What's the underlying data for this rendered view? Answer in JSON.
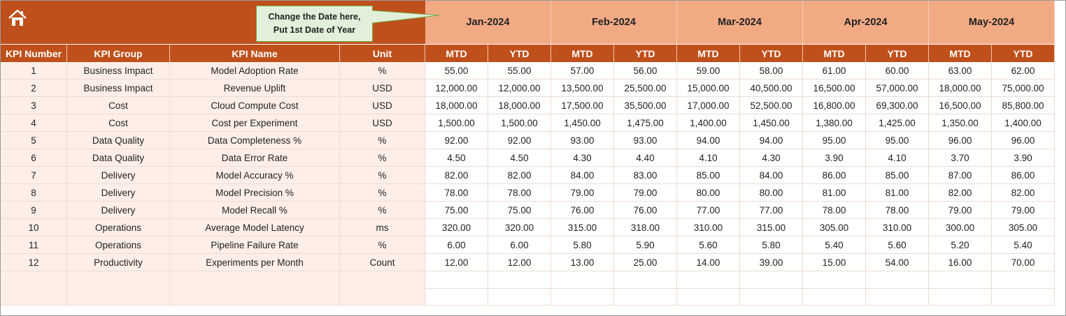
{
  "header": {
    "note": [
      "Change the Date here,",
      "Put 1st Date of Year"
    ],
    "months": [
      "Jan-2024",
      "Feb-2024",
      "Mar-2024",
      "Apr-2024",
      "May-2024"
    ]
  },
  "table": {
    "columns": [
      "KPI Number",
      "KPI Group",
      "KPI Name",
      "Unit"
    ],
    "sub_columns": [
      "MTD",
      "YTD"
    ],
    "rows": [
      [
        1,
        "Business Impact",
        "Model Adoption Rate",
        "%",
        "55.00",
        "55.00",
        "57.00",
        "56.00",
        "59.00",
        "58.00",
        "61.00",
        "60.00",
        "63.00",
        "62.00"
      ],
      [
        2,
        "Business Impact",
        "Revenue Uplift",
        "USD",
        "12,000.00",
        "12,000.00",
        "13,500.00",
        "25,500.00",
        "15,000.00",
        "40,500.00",
        "16,500.00",
        "57,000.00",
        "18,000.00",
        "75,000.00"
      ],
      [
        3,
        "Cost",
        "Cloud Compute Cost",
        "USD",
        "18,000.00",
        "18,000.00",
        "17,500.00",
        "35,500.00",
        "17,000.00",
        "52,500.00",
        "16,800.00",
        "69,300.00",
        "16,500.00",
        "85,800.00"
      ],
      [
        4,
        "Cost",
        "Cost per Experiment",
        "USD",
        "1,500.00",
        "1,500.00",
        "1,450.00",
        "1,475.00",
        "1,400.00",
        "1,450.00",
        "1,380.00",
        "1,425.00",
        "1,350.00",
        "1,400.00"
      ],
      [
        5,
        "Data Quality",
        "Data Completeness %",
        "%",
        "92.00",
        "92.00",
        "93.00",
        "93.00",
        "94.00",
        "94.00",
        "95.00",
        "95.00",
        "96.00",
        "96.00"
      ],
      [
        6,
        "Data Quality",
        "Data Error Rate",
        "%",
        "4.50",
        "4.50",
        "4.30",
        "4.40",
        "4.10",
        "4.30",
        "3.90",
        "4.10",
        "3.70",
        "3.90"
      ],
      [
        7,
        "Delivery",
        "Model Accuracy %",
        "%",
        "82.00",
        "82.00",
        "84.00",
        "83.00",
        "85.00",
        "84.00",
        "86.00",
        "85.00",
        "87.00",
        "86.00"
      ],
      [
        8,
        "Delivery",
        "Model Precision %",
        "%",
        "78.00",
        "78.00",
        "79.00",
        "79.00",
        "80.00",
        "80.00",
        "81.00",
        "81.00",
        "82.00",
        "82.00"
      ],
      [
        9,
        "Delivery",
        "Model Recall %",
        "%",
        "75.00",
        "75.00",
        "76.00",
        "76.00",
        "77.00",
        "77.00",
        "78.00",
        "78.00",
        "79.00",
        "79.00"
      ],
      [
        10,
        "Operations",
        "Average Model Latency",
        "ms",
        "320.00",
        "320.00",
        "315.00",
        "318.00",
        "310.00",
        "315.00",
        "305.00",
        "310.00",
        "300.00",
        "305.00"
      ],
      [
        11,
        "Operations",
        "Pipeline Failure Rate",
        "%",
        "6.00",
        "6.00",
        "5.80",
        "5.90",
        "5.60",
        "5.80",
        "5.40",
        "5.60",
        "5.20",
        "5.40"
      ],
      [
        12,
        "Productivity",
        "Experiments per Month",
        "Count",
        "12.00",
        "12.00",
        "13.00",
        "25.00",
        "14.00",
        "39.00",
        "15.00",
        "54.00",
        "16.00",
        "70.00"
      ]
    ]
  }
}
